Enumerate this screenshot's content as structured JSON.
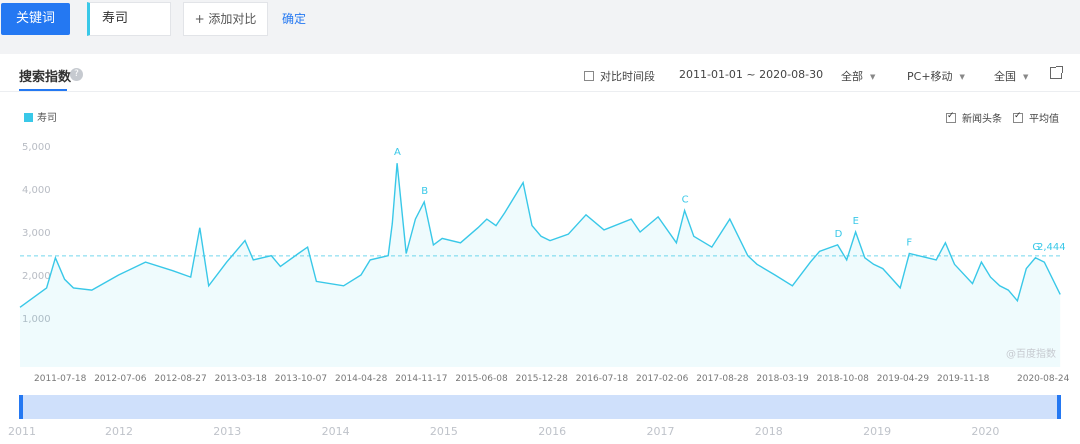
{
  "toolbar": {
    "keyword_button": "关键词",
    "keyword_value": "寿司",
    "add_compare": "+ 添加对比",
    "confirm": "确定"
  },
  "panel": {
    "tab_title": "搜索指数",
    "help_icon": "question-icon",
    "compare_period": "对比时间段",
    "date_range": "2011-01-01 ~ 2020-08-30",
    "scope_select": "全部",
    "device_select": "PC+移动",
    "region_select": "全国",
    "export_icon": "external-link-icon",
    "legend_label": "寿司",
    "news_label": "新闻头条",
    "avg_label": "平均值",
    "watermark": "@百度指数"
  },
  "colors": {
    "accent": "#2478f2",
    "series": "#39c8e8"
  },
  "chart_data": {
    "type": "area",
    "series": [
      {
        "name": "寿司",
        "x": [
          "2011-01-01",
          "2011-04-01",
          "2011-05-01",
          "2011-06-01",
          "2011-07-01",
          "2011-09-01",
          "2011-12-01",
          "2012-03-01",
          "2012-06-01",
          "2012-08-01",
          "2012-09-01",
          "2012-10-01",
          "2012-12-01",
          "2013-02-01",
          "2013-03-01",
          "2013-05-01",
          "2013-06-01",
          "2013-08-01",
          "2013-09-01",
          "2013-10-01",
          "2014-01-01",
          "2014-03-01",
          "2014-04-01",
          "2014-06-01",
          "2014-06-15",
          "2014-07-01",
          "2014-08-01",
          "2014-09-01",
          "2014-10-01",
          "2014-11-01",
          "2014-12-01",
          "2015-02-01",
          "2015-04-01",
          "2015-05-01",
          "2015-06-01",
          "2015-07-01",
          "2015-09-01",
          "2015-10-01",
          "2015-11-01",
          "2015-12-01",
          "2016-02-01",
          "2016-04-01",
          "2016-06-01",
          "2016-09-01",
          "2016-10-01",
          "2016-12-01",
          "2017-02-01",
          "2017-03-01",
          "2017-04-01",
          "2017-06-01",
          "2017-08-01",
          "2017-10-01",
          "2017-11-01",
          "2018-01-01",
          "2018-03-01",
          "2018-05-01",
          "2018-06-01",
          "2018-08-01",
          "2018-09-01",
          "2018-10-01",
          "2018-11-01",
          "2018-12-01",
          "2019-01-01",
          "2019-03-01",
          "2019-04-01",
          "2019-06-01",
          "2019-07-01",
          "2019-08-01",
          "2019-09-01",
          "2019-11-01",
          "2019-12-01",
          "2020-01-01",
          "2020-02-01",
          "2020-03-01",
          "2020-04-01",
          "2020-05-01",
          "2020-06-01",
          "2020-07-01",
          "2020-08-24"
        ],
        "values": [
          1250,
          1700,
          2400,
          1900,
          1700,
          1650,
          2000,
          2300,
          2100,
          1950,
          3100,
          1750,
          2300,
          2800,
          2350,
          2450,
          2200,
          2500,
          2650,
          1850,
          1750,
          2000,
          2350,
          2450,
          3200,
          4600,
          2500,
          3300,
          3700,
          2700,
          2850,
          2750,
          3100,
          3300,
          3150,
          3450,
          4150,
          3150,
          2900,
          2800,
          2950,
          3400,
          3050,
          3300,
          3000,
          3350,
          2750,
          3500,
          2900,
          2650,
          3300,
          2450,
          2250,
          2000,
          1750,
          2300,
          2550,
          2700,
          2350,
          3000,
          2400,
          2250,
          2150,
          1700,
          2500,
          2400,
          2350,
          2750,
          2250,
          1800,
          2300,
          1950,
          1750,
          1650,
          1400,
          2150,
          2400,
          2300,
          1550
        ]
      }
    ],
    "average": 2444,
    "average_label": "2,444",
    "ylim": [
      0,
      5000
    ],
    "yticks": [
      "1,000",
      "2,000",
      "3,000",
      "4,000",
      "5,000"
    ],
    "xtick_labels": [
      "2011-07-18",
      "2012-07-06",
      "2012-08-27",
      "2013-03-18",
      "2013-10-07",
      "2014-04-28",
      "2014-11-17",
      "2015-06-08",
      "2015-12-28",
      "2016-07-18",
      "2017-02-06",
      "2017-08-28",
      "2018-03-19",
      "2018-10-08",
      "2019-04-29",
      "2019-11-18",
      "2020-08-24"
    ],
    "annotations": [
      {
        "label": "A",
        "x": "2014-07-01"
      },
      {
        "label": "B",
        "x": "2014-10-01"
      },
      {
        "label": "C",
        "x": "2017-03-01"
      },
      {
        "label": "D",
        "x": "2018-08-01"
      },
      {
        "label": "E",
        "x": "2018-10-01"
      },
      {
        "label": "F",
        "x": "2019-04-01"
      },
      {
        "label": "G",
        "x": "2020-06-01"
      }
    ],
    "years": [
      "2011",
      "2012",
      "2013",
      "2014",
      "2015",
      "2016",
      "2017",
      "2018",
      "2019",
      "2020"
    ],
    "grid": false,
    "legend_position": "top-left"
  }
}
